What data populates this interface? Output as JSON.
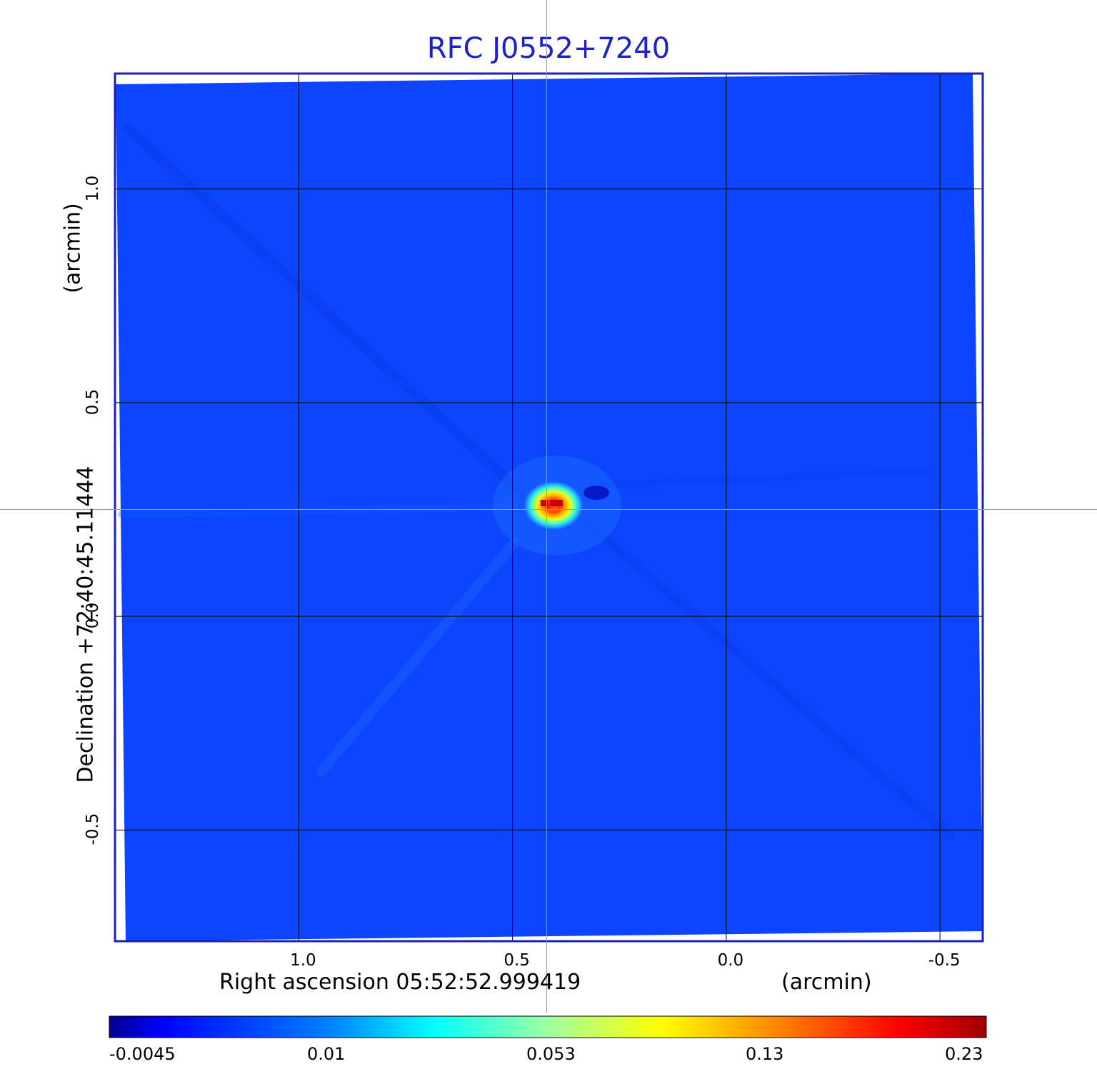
{
  "chart_data": {
    "type": "heatmap",
    "title": "RFC J0552+7240",
    "xlabel": "Right ascension  05:52:52.999419",
    "xunit": "(arcmin)",
    "ylabel": "Declination  +72:40:45.11444",
    "yunit": "(arcmin)",
    "x_ticks": [
      "1.0",
      "0.5",
      "0.0",
      "-0.5"
    ],
    "x_tick_values": [
      1.0,
      0.5,
      0.0,
      -0.5
    ],
    "y_ticks": [
      "1.0",
      "0.5",
      "0.0",
      "-0.5"
    ],
    "y_tick_values": [
      1.0,
      0.5,
      0.0,
      -0.5
    ],
    "xlim": [
      1.43,
      -0.6
    ],
    "ylim": [
      -0.76,
      1.27
    ],
    "grid": true,
    "crosshair": {
      "x": 0.42,
      "y": 0.25
    },
    "peak": {
      "x": 0.42,
      "y": 0.25,
      "value": 0.23
    },
    "colorbar": {
      "colormap": "jet",
      "ticks": [
        "-0.0045",
        "0.01",
        "0.053",
        "0.13",
        "0.23"
      ]
    }
  },
  "colors": {
    "title": "#1c22c8",
    "frame": "#1a1fc0",
    "background_field": "#0d45ff",
    "crosshair": "#33e633",
    "grid": "#000000"
  }
}
